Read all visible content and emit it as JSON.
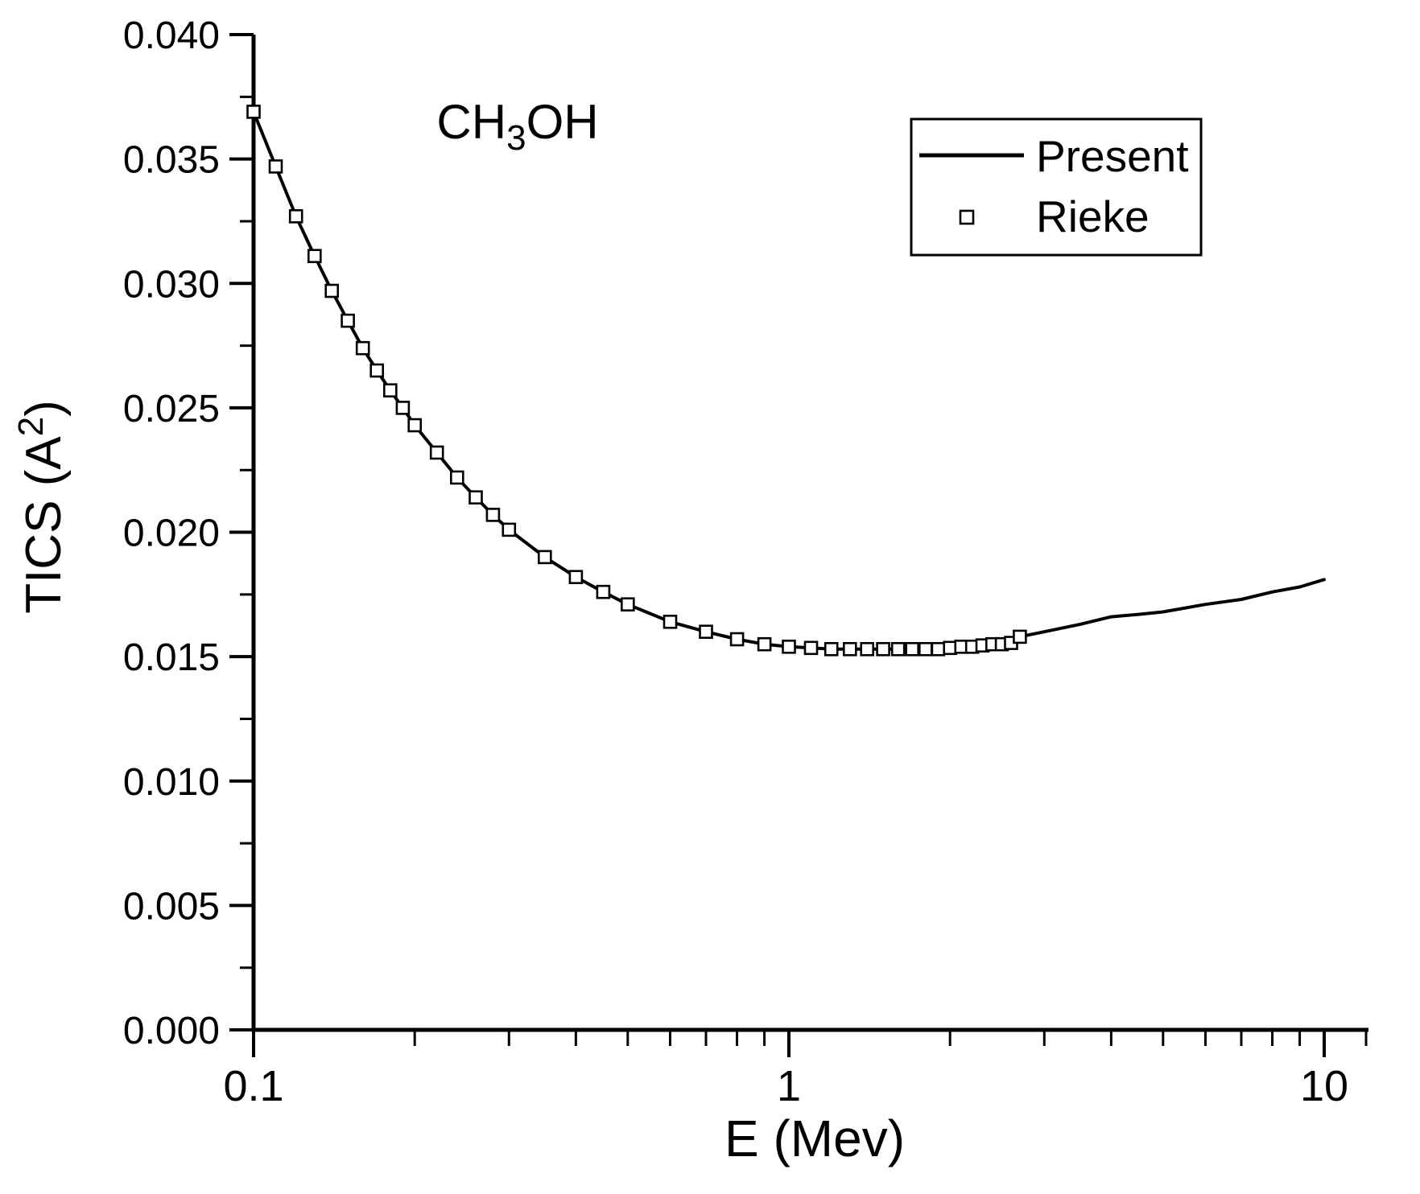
{
  "figure": {
    "background": "#ffffff",
    "ink": "#000000",
    "title": {
      "main": "CH",
      "sub": "3",
      "end": "OH"
    },
    "x_axis": {
      "label": "E (Mev)",
      "scale": "log",
      "min": 0.1,
      "max": 10,
      "major_ticks": [
        0.1,
        1,
        10
      ],
      "major_tick_labels": [
        "0.1",
        "1",
        "10"
      ],
      "minor_ticks": [
        0.2,
        0.3,
        0.4,
        0.5,
        0.6,
        0.7,
        0.8,
        0.9,
        2,
        3,
        4,
        5,
        6,
        7,
        8,
        9
      ]
    },
    "y_axis": {
      "label_main": "TICS (A",
      "label_sup": "2",
      "label_end": ")",
      "min": 0,
      "max": 0.04,
      "major_ticks": [
        0,
        0.005,
        0.01,
        0.015,
        0.02,
        0.025,
        0.03,
        0.035,
        0.04
      ],
      "major_tick_labels": [
        "0.000",
        "0.005",
        "0.010",
        "0.015",
        "0.020",
        "0.025",
        "0.030",
        "0.035",
        "0.040"
      ],
      "minor_ticks": [
        0.0025,
        0.0075,
        0.0125,
        0.0175,
        0.0225,
        0.0275,
        0.0325,
        0.0375
      ]
    },
    "legend": {
      "items": [
        {
          "label": "Present",
          "marker": "line"
        },
        {
          "label": "Rieke",
          "marker": "open-square"
        }
      ]
    }
  },
  "chart_data": {
    "type": "line",
    "title": "CH3OH",
    "xlabel": "E (Mev)",
    "ylabel": "TICS (A^2)",
    "x_scale": "log",
    "xlim": [
      0.1,
      10
    ],
    "ylim": [
      0,
      0.04
    ],
    "grid": false,
    "legend_position": "upper-right",
    "series": [
      {
        "name": "Present",
        "type": "line",
        "x": [
          0.1,
          0.11,
          0.12,
          0.13,
          0.14,
          0.15,
          0.16,
          0.17,
          0.18,
          0.19,
          0.2,
          0.22,
          0.24,
          0.26,
          0.28,
          0.3,
          0.35,
          0.4,
          0.45,
          0.5,
          0.6,
          0.7,
          0.8,
          0.9,
          1.0,
          1.1,
          1.2,
          1.3,
          1.4,
          1.5,
          1.6,
          1.7,
          1.8,
          1.9,
          2.0,
          2.1,
          2.2,
          2.3,
          2.4,
          2.5,
          2.6,
          2.7,
          3.0,
          3.5,
          4.0,
          4.5,
          5.0,
          6.0,
          7.0,
          8.0,
          9.0,
          10.0
        ],
        "y": [
          0.0369,
          0.0347,
          0.0327,
          0.0311,
          0.0297,
          0.0285,
          0.0274,
          0.0265,
          0.0257,
          0.025,
          0.0243,
          0.0232,
          0.0222,
          0.0214,
          0.0207,
          0.0201,
          0.019,
          0.0182,
          0.0176,
          0.0171,
          0.0164,
          0.016,
          0.0157,
          0.0155,
          0.0154,
          0.01535,
          0.0153,
          0.0153,
          0.0153,
          0.0153,
          0.0153,
          0.0153,
          0.0153,
          0.0153,
          0.01535,
          0.0154,
          0.0154,
          0.01545,
          0.0155,
          0.0155,
          0.01555,
          0.0158,
          0.016,
          0.0163,
          0.0166,
          0.0167,
          0.0168,
          0.0171,
          0.0173,
          0.0176,
          0.0178,
          0.0181
        ]
      },
      {
        "name": "Rieke",
        "type": "scatter",
        "marker": "open-square",
        "x": [
          0.1,
          0.11,
          0.12,
          0.13,
          0.14,
          0.15,
          0.16,
          0.17,
          0.18,
          0.19,
          0.2,
          0.22,
          0.24,
          0.26,
          0.28,
          0.3,
          0.35,
          0.4,
          0.45,
          0.5,
          0.6,
          0.7,
          0.8,
          0.9,
          1.0,
          1.1,
          1.2,
          1.3,
          1.4,
          1.5,
          1.6,
          1.7,
          1.8,
          1.9,
          2.0,
          2.1,
          2.2,
          2.3,
          2.4,
          2.5,
          2.6,
          2.7
        ],
        "y": [
          0.0369,
          0.0347,
          0.0327,
          0.0311,
          0.0297,
          0.0285,
          0.0274,
          0.0265,
          0.0257,
          0.025,
          0.0243,
          0.0232,
          0.0222,
          0.0214,
          0.0207,
          0.0201,
          0.019,
          0.0182,
          0.0176,
          0.0171,
          0.0164,
          0.016,
          0.0157,
          0.0155,
          0.0154,
          0.01535,
          0.0153,
          0.0153,
          0.0153,
          0.0153,
          0.0153,
          0.0153,
          0.0153,
          0.0153,
          0.01535,
          0.0154,
          0.0154,
          0.01545,
          0.0155,
          0.0155,
          0.01555,
          0.0158
        ]
      }
    ]
  }
}
